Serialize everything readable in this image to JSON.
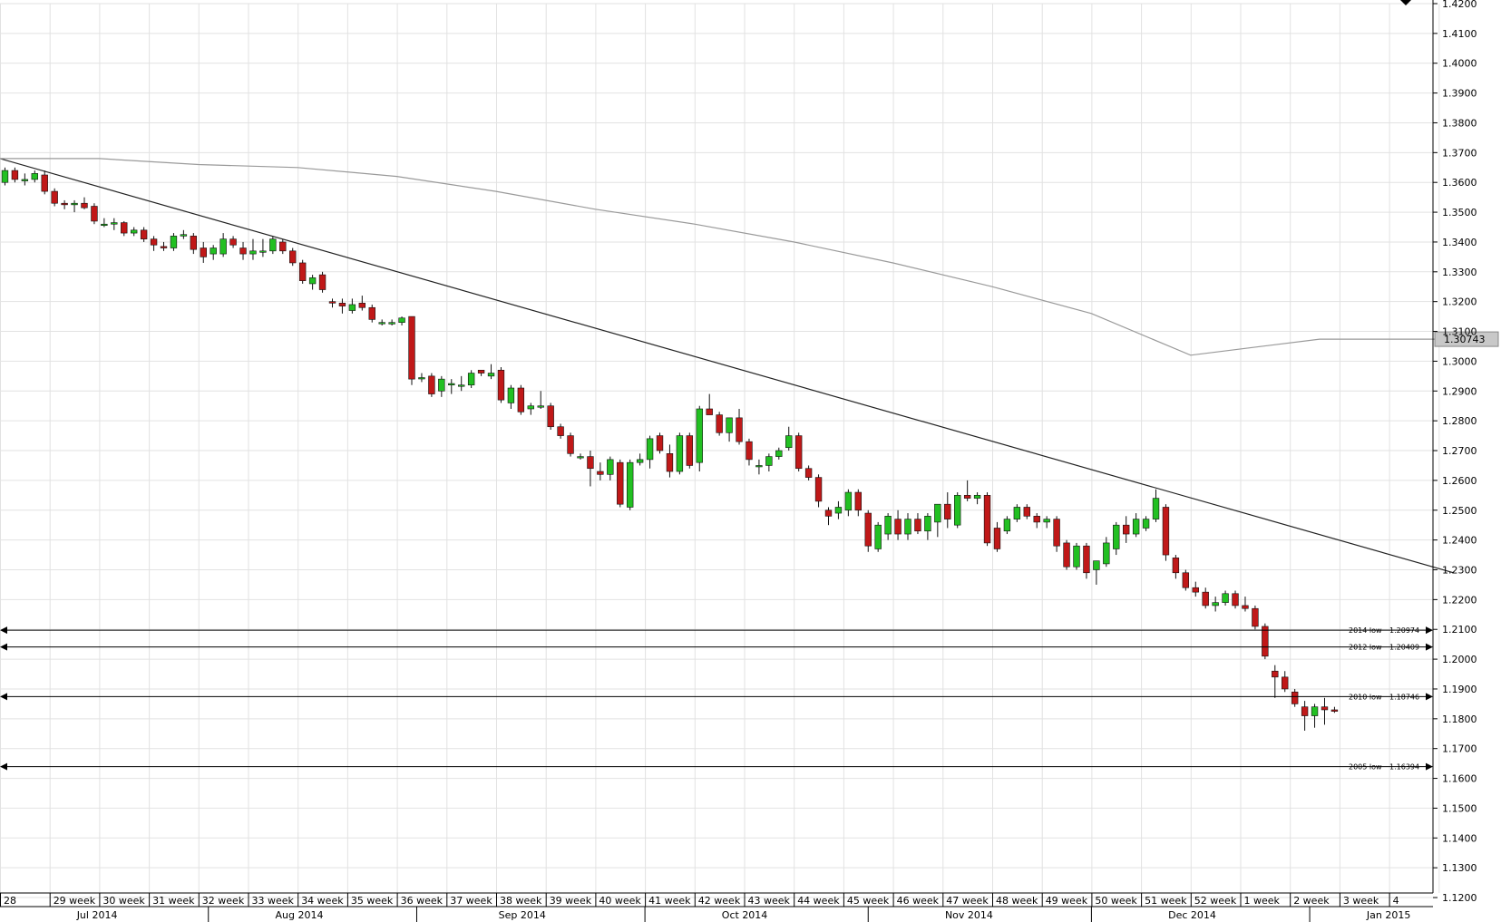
{
  "chart_data": {
    "type": "candlestick",
    "instrument_note": "",
    "colors": {
      "up": "#22c022",
      "down": "#c01818",
      "grid": "#e2e2e2",
      "trendline": "#222222",
      "ma": "#9a9a9a",
      "level": "#000000",
      "badge": "#c8c8c8"
    },
    "y_axis": {
      "min": 1.12,
      "max": 1.42,
      "ticks": [
        "1.4200",
        "1.4100",
        "1.4000",
        "1.3900",
        "1.3800",
        "1.3700",
        "1.3600",
        "1.3500",
        "1.3400",
        "1.3300",
        "1.3200",
        "1.3100",
        "1.3000",
        "1.2900",
        "1.2800",
        "1.2700",
        "1.2600",
        "1.2500",
        "1.2400",
        "1.2300",
        "1.2200",
        "1.2100",
        "1.2000",
        "1.1900",
        "1.1800",
        "1.1700",
        "1.1600",
        "1.1500",
        "1.1400",
        "1.1300",
        "1.1200"
      ],
      "tick_values": [
        1.42,
        1.41,
        1.4,
        1.39,
        1.38,
        1.37,
        1.36,
        1.35,
        1.34,
        1.33,
        1.32,
        1.31,
        1.3,
        1.29,
        1.28,
        1.27,
        1.26,
        1.25,
        1.24,
        1.23,
        1.22,
        1.21,
        1.2,
        1.19,
        1.18,
        1.17,
        1.16,
        1.15,
        1.14,
        1.13,
        1.12
      ]
    },
    "week_labels": [
      "28",
      "29 week",
      "30 week",
      "31 week",
      "32 week",
      "33 week",
      "34 week",
      "35 week",
      "36 week",
      "37 week",
      "38 week",
      "39 week",
      "40 week",
      "41 week",
      "42 week",
      "43 week",
      "44 week",
      "45 week",
      "46 week",
      "47 week",
      "48 week",
      "49 week",
      "50 week",
      "51 week",
      "52 week",
      "1 week",
      "2 week",
      "3 week",
      "4"
    ],
    "month_labels": [
      {
        "label": "Jul 2014",
        "at_week": 1
      },
      {
        "label": "Aug 2014",
        "at_week": 5
      },
      {
        "label": "Sep 2014",
        "at_week": 9.5
      },
      {
        "label": "Oct 2014",
        "at_week": 14
      },
      {
        "label": "Nov 2014",
        "at_week": 18.5
      },
      {
        "label": "Dec 2014",
        "at_week": 23
      },
      {
        "label": "Jan 2015",
        "at_week": 27
      }
    ],
    "candles_per_week": 5,
    "candles": [
      [
        1.36,
        1.365,
        1.359,
        1.364
      ],
      [
        1.364,
        1.365,
        1.36,
        1.361
      ],
      [
        1.3605,
        1.363,
        1.359,
        1.361
      ],
      [
        1.361,
        1.364,
        1.36,
        1.363
      ],
      [
        1.3625,
        1.364,
        1.356,
        1.357
      ],
      [
        1.357,
        1.358,
        1.352,
        1.353
      ],
      [
        1.353,
        1.354,
        1.351,
        1.3525
      ],
      [
        1.3525,
        1.354,
        1.35,
        1.353
      ],
      [
        1.353,
        1.355,
        1.351,
        1.3515
      ],
      [
        1.352,
        1.353,
        1.346,
        1.347
      ],
      [
        1.346,
        1.348,
        1.345,
        1.346
      ],
      [
        1.346,
        1.348,
        1.344,
        1.3465
      ],
      [
        1.3465,
        1.347,
        1.342,
        1.343
      ],
      [
        1.343,
        1.345,
        1.342,
        1.344
      ],
      [
        1.344,
        1.345,
        1.34,
        1.341
      ],
      [
        1.341,
        1.342,
        1.337,
        1.339
      ],
      [
        1.3385,
        1.34,
        1.337,
        1.338
      ],
      [
        1.338,
        1.343,
        1.337,
        1.342
      ],
      [
        1.342,
        1.344,
        1.341,
        1.3425
      ],
      [
        1.342,
        1.343,
        1.336,
        1.3375
      ],
      [
        1.338,
        1.34,
        1.333,
        1.335
      ],
      [
        1.336,
        1.339,
        1.334,
        1.338
      ],
      [
        1.336,
        1.343,
        1.335,
        1.341
      ],
      [
        1.341,
        1.342,
        1.338,
        1.339
      ],
      [
        1.338,
        1.34,
        1.334,
        1.336
      ],
      [
        1.336,
        1.341,
        1.334,
        1.337
      ],
      [
        1.337,
        1.341,
        1.335,
        1.337
      ],
      [
        1.337,
        1.342,
        1.336,
        1.341
      ],
      [
        1.34,
        1.341,
        1.336,
        1.337
      ],
      [
        1.337,
        1.338,
        1.332,
        1.333
      ],
      [
        1.333,
        1.334,
        1.326,
        1.327
      ],
      [
        1.326,
        1.329,
        1.324,
        1.328
      ],
      [
        1.329,
        1.33,
        1.323,
        1.324
      ],
      [
        1.32,
        1.321,
        1.318,
        1.3195
      ],
      [
        1.3195,
        1.321,
        1.316,
        1.3185
      ],
      [
        1.317,
        1.321,
        1.316,
        1.319
      ],
      [
        1.3195,
        1.322,
        1.317,
        1.318
      ],
      [
        1.318,
        1.319,
        1.313,
        1.314
      ],
      [
        1.313,
        1.314,
        1.312,
        1.313
      ],
      [
        1.3125,
        1.314,
        1.312,
        1.313
      ],
      [
        1.313,
        1.315,
        1.312,
        1.3145
      ],
      [
        1.315,
        1.315,
        1.292,
        1.294
      ],
      [
        1.2945,
        1.296,
        1.293,
        1.2945
      ],
      [
        1.295,
        1.296,
        1.288,
        1.289
      ],
      [
        1.29,
        1.295,
        1.288,
        1.294
      ],
      [
        1.292,
        1.294,
        1.289,
        1.2925
      ],
      [
        1.292,
        1.295,
        1.29,
        1.292
      ],
      [
        1.292,
        1.297,
        1.291,
        1.296
      ],
      [
        1.297,
        1.297,
        1.295,
        1.296
      ],
      [
        1.295,
        1.299,
        1.294,
        1.296
      ],
      [
        1.297,
        1.298,
        1.286,
        1.287
      ],
      [
        1.286,
        1.292,
        1.284,
        1.291
      ],
      [
        1.291,
        1.292,
        1.282,
        1.283
      ],
      [
        1.284,
        1.286,
        1.282,
        1.285
      ],
      [
        1.285,
        1.29,
        1.284,
        1.285
      ],
      [
        1.285,
        1.286,
        1.277,
        1.278
      ],
      [
        1.278,
        1.279,
        1.274,
        1.275
      ],
      [
        1.275,
        1.276,
        1.268,
        1.269
      ],
      [
        1.268,
        1.269,
        1.267,
        1.268
      ],
      [
        1.268,
        1.27,
        1.258,
        1.264
      ],
      [
        1.263,
        1.266,
        1.26,
        1.262
      ],
      [
        1.262,
        1.268,
        1.26,
        1.267
      ],
      [
        1.266,
        1.267,
        1.251,
        1.252
      ],
      [
        1.251,
        1.267,
        1.25,
        1.266
      ],
      [
        1.266,
        1.269,
        1.265,
        1.267
      ],
      [
        1.267,
        1.275,
        1.264,
        1.274
      ],
      [
        1.275,
        1.276,
        1.269,
        1.27
      ],
      [
        1.269,
        1.272,
        1.261,
        1.263
      ],
      [
        1.263,
        1.276,
        1.262,
        1.275
      ],
      [
        1.275,
        1.276,
        1.264,
        1.265
      ],
      [
        1.266,
        1.285,
        1.263,
        1.284
      ],
      [
        1.284,
        1.289,
        1.282,
        1.282
      ],
      [
        1.282,
        1.283,
        1.275,
        1.276
      ],
      [
        1.276,
        1.281,
        1.273,
        1.281
      ],
      [
        1.281,
        1.284,
        1.272,
        1.273
      ],
      [
        1.273,
        1.274,
        1.265,
        1.267
      ],
      [
        1.265,
        1.267,
        1.262,
        1.265
      ],
      [
        1.265,
        1.269,
        1.263,
        1.268
      ],
      [
        1.268,
        1.271,
        1.267,
        1.27
      ],
      [
        1.271,
        1.278,
        1.27,
        1.275
      ],
      [
        1.275,
        1.276,
        1.263,
        1.264
      ],
      [
        1.264,
        1.265,
        1.26,
        1.261
      ],
      [
        1.261,
        1.262,
        1.251,
        1.253
      ],
      [
        1.25,
        1.251,
        1.245,
        1.248
      ],
      [
        1.249,
        1.253,
        1.247,
        1.251
      ],
      [
        1.25,
        1.257,
        1.248,
        1.256
      ],
      [
        1.256,
        1.257,
        1.248,
        1.25
      ],
      [
        1.249,
        1.25,
        1.236,
        1.238
      ],
      [
        1.237,
        1.246,
        1.236,
        1.245
      ],
      [
        1.242,
        1.249,
        1.24,
        1.248
      ],
      [
        1.247,
        1.25,
        1.24,
        1.242
      ],
      [
        1.242,
        1.249,
        1.24,
        1.247
      ],
      [
        1.247,
        1.249,
        1.242,
        1.243
      ],
      [
        1.243,
        1.249,
        1.24,
        1.248
      ],
      [
        1.246,
        1.252,
        1.241,
        1.252
      ],
      [
        1.252,
        1.256,
        1.244,
        1.247
      ],
      [
        1.245,
        1.256,
        1.244,
        1.255
      ],
      [
        1.255,
        1.26,
        1.253,
        1.254
      ],
      [
        1.254,
        1.256,
        1.252,
        1.255
      ],
      [
        1.255,
        1.256,
        1.238,
        1.239
      ],
      [
        1.244,
        1.246,
        1.236,
        1.237
      ],
      [
        1.243,
        1.248,
        1.242,
        1.247
      ],
      [
        1.247,
        1.252,
        1.246,
        1.251
      ],
      [
        1.251,
        1.252,
        1.247,
        1.248
      ],
      [
        1.248,
        1.249,
        1.244,
        1.246
      ],
      [
        1.246,
        1.248,
        1.244,
        1.247
      ],
      [
        1.247,
        1.248,
        1.236,
        1.238
      ],
      [
        1.239,
        1.24,
        1.23,
        1.231
      ],
      [
        1.231,
        1.239,
        1.23,
        1.238
      ],
      [
        1.238,
        1.239,
        1.227,
        1.229
      ],
      [
        1.23,
        1.233,
        1.225,
        1.233
      ],
      [
        1.232,
        1.241,
        1.231,
        1.239
      ],
      [
        1.237,
        1.246,
        1.235,
        1.245
      ],
      [
        1.245,
        1.248,
        1.239,
        1.242
      ],
      [
        1.242,
        1.249,
        1.241,
        1.247
      ],
      [
        1.244,
        1.248,
        1.243,
        1.247
      ],
      [
        1.247,
        1.257,
        1.246,
        1.254
      ],
      [
        1.251,
        1.252,
        1.233,
        1.235
      ],
      [
        1.234,
        1.235,
        1.227,
        1.229
      ],
      [
        1.229,
        1.23,
        1.223,
        1.224
      ],
      [
        1.224,
        1.226,
        1.221,
        1.2225
      ],
      [
        1.2225,
        1.224,
        1.217,
        1.218
      ],
      [
        1.218,
        1.221,
        1.216,
        1.219
      ],
      [
        1.219,
        1.223,
        1.218,
        1.222
      ],
      [
        1.222,
        1.223,
        1.217,
        1.218
      ],
      [
        1.218,
        1.221,
        1.216,
        1.217
      ],
      [
        1.217,
        1.218,
        1.21,
        1.211
      ],
      [
        1.211,
        1.212,
        1.2,
        1.201
      ],
      [
        1.196,
        1.198,
        1.187,
        1.194
      ],
      [
        1.194,
        1.196,
        1.189,
        1.19
      ],
      [
        1.189,
        1.19,
        1.184,
        1.185
      ],
      [
        1.184,
        1.186,
        1.176,
        1.181
      ],
      [
        1.181,
        1.185,
        1.177,
        1.184
      ],
      [
        1.184,
        1.187,
        1.178,
        1.183
      ],
      [
        1.183,
        1.184,
        1.182,
        1.1825
      ]
    ],
    "trendline": {
      "from": [
        0,
        1.368
      ],
      "to": [
        29.3,
        1.229
      ]
    },
    "moving_average": {
      "points": [
        [
          0,
          1.368
        ],
        [
          2,
          1.368
        ],
        [
          4,
          1.366
        ],
        [
          6,
          1.365
        ],
        [
          8,
          1.362
        ],
        [
          10,
          1.357
        ],
        [
          12,
          1.351
        ],
        [
          14,
          1.346
        ],
        [
          16,
          1.34
        ],
        [
          18,
          1.333
        ],
        [
          20,
          1.325
        ],
        [
          22,
          1.316
        ],
        [
          24,
          1.302
        ],
        [
          26.6,
          1.3074
        ],
        [
          29.3,
          1.3074
        ]
      ],
      "last_value": "1.30743"
    },
    "levels": [
      {
        "name": "2014 low",
        "value": 1.20974,
        "value_label": "1.20974"
      },
      {
        "name": "2012 low",
        "value": 1.20409,
        "value_label": "1.20409"
      },
      {
        "name": "2010 low",
        "value": 1.18746,
        "value_label": "1.18746"
      },
      {
        "name": "2005 low",
        "value": 1.16394,
        "value_label": "1.16394"
      }
    ]
  }
}
